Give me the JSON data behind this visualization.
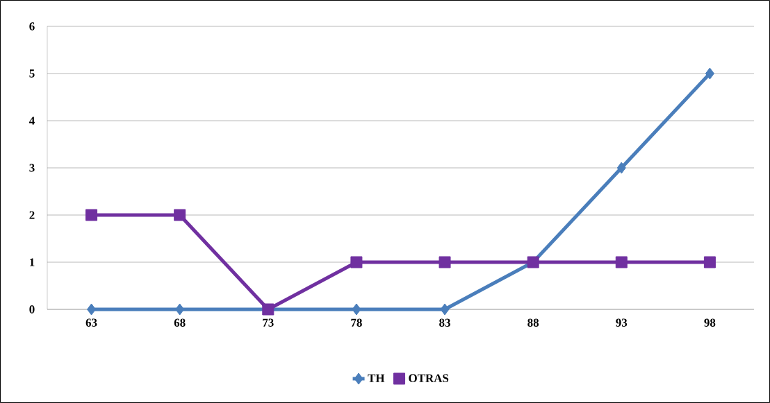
{
  "chart_data": {
    "type": "line",
    "categories": [
      "63",
      "68",
      "73",
      "78",
      "83",
      "88",
      "93",
      "98"
    ],
    "series": [
      {
        "name": "TH",
        "color": "#4a7ebb",
        "marker": "diamond",
        "values": [
          0,
          0,
          0,
          0,
          0,
          1,
          3,
          5
        ]
      },
      {
        "name": "OTRAS",
        "color": "#7030a0",
        "marker": "square",
        "values": [
          2,
          2,
          0,
          1,
          1,
          1,
          1,
          1
        ]
      }
    ],
    "ylim": [
      0,
      6
    ],
    "yticks": [
      0,
      1,
      2,
      3,
      4,
      5,
      6
    ],
    "grid": "y",
    "legend": "bottom",
    "line_style": "solid"
  }
}
